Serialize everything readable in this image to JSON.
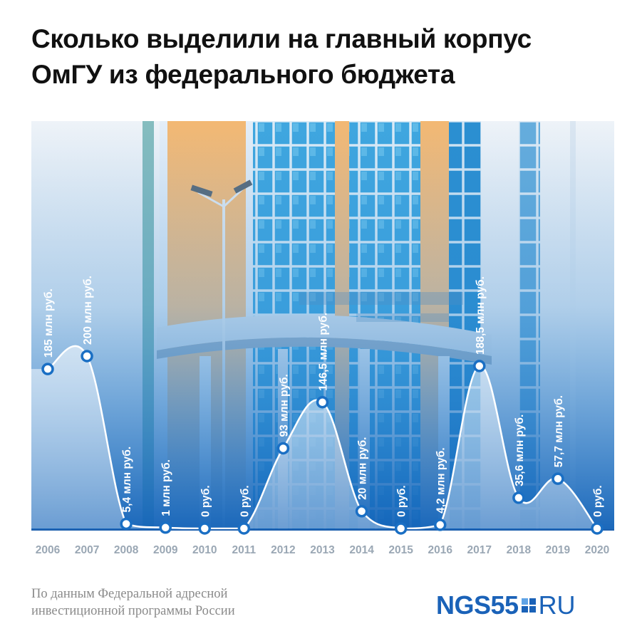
{
  "header": {
    "title_line1": "Сколько выделили на главный корпус",
    "title_line2": "ОмГУ из федерального бюджета"
  },
  "footer": {
    "source_line1": "По данным Федеральной адресной",
    "source_line2": "инвестиционной программы России",
    "logo_main": "NGS55",
    "logo_suffix": "RU"
  },
  "colors": {
    "area_fill": "#ffffff",
    "line": "#ffffff",
    "marker_stroke": "#1a6fc4",
    "axis_label": "#9aa7b4",
    "baseline": "#1d5fae",
    "sky_top": "#dbe9f6",
    "glass": "#3aa0da",
    "glass_dark": "#1c77c2",
    "orange": "#f2b56a"
  },
  "chart_data": {
    "type": "area",
    "title": "Сколько выделили на главный корпус ОмГУ из федерального бюджета",
    "xlabel": "",
    "ylabel": "",
    "unit": "млн руб.",
    "categories": [
      "2006",
      "2007",
      "2008",
      "2009",
      "2010",
      "2011",
      "2012",
      "2013",
      "2014",
      "2015",
      "2016",
      "2017",
      "2018",
      "2019",
      "2020"
    ],
    "values": [
      185,
      200,
      5.4,
      1,
      0,
      0,
      93,
      146.5,
      20,
      0,
      4.2,
      188.5,
      35.6,
      57.7,
      0
    ],
    "data_labels": [
      "185 млн руб.",
      "200 млн руб.",
      "5,4 млн руб.",
      "1 млн руб.",
      "0 руб.",
      "0 руб.",
      "93 млн руб.",
      "146,5 млн руб.",
      "20 млн руб.",
      "0 руб.",
      "4,2 млн руб.",
      "188,5 млн руб.",
      "35,6 млн руб.",
      "57,7 млн руб.",
      "0 руб."
    ],
    "ylim": [
      0,
      200
    ],
    "grid": false,
    "legend": "none"
  }
}
